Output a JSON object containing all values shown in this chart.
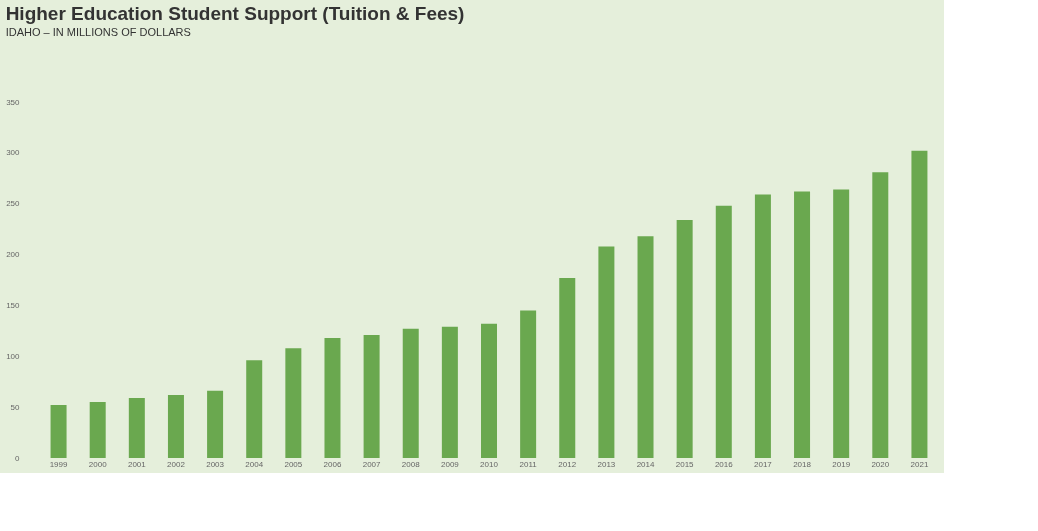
{
  "chart_data": {
    "type": "bar",
    "title": "Higher Education Student Support (Tuition & Fees)",
    "subtitle": "IDAHO – IN MILLIONS OF DOLLARS",
    "categories": [
      "1999",
      "2000",
      "2001",
      "2002",
      "2003",
      "2004",
      "2005",
      "2006",
      "2007",
      "2008",
      "2009",
      "2010",
      "2011",
      "2012",
      "2013",
      "2014",
      "2015",
      "2016",
      "2017",
      "2018",
      "2019",
      "2020",
      "2021"
    ],
    "values": [
      52,
      55,
      59,
      62,
      66,
      96,
      108,
      118,
      121,
      127,
      129,
      132,
      145,
      177,
      208,
      218,
      234,
      248,
      259,
      262,
      264,
      281,
      302
    ],
    "color": "#6aa84f",
    "ylim": [
      0,
      350
    ],
    "yticks": [
      0,
      50,
      100,
      150,
      200,
      250,
      300,
      350
    ],
    "grid": false
  }
}
